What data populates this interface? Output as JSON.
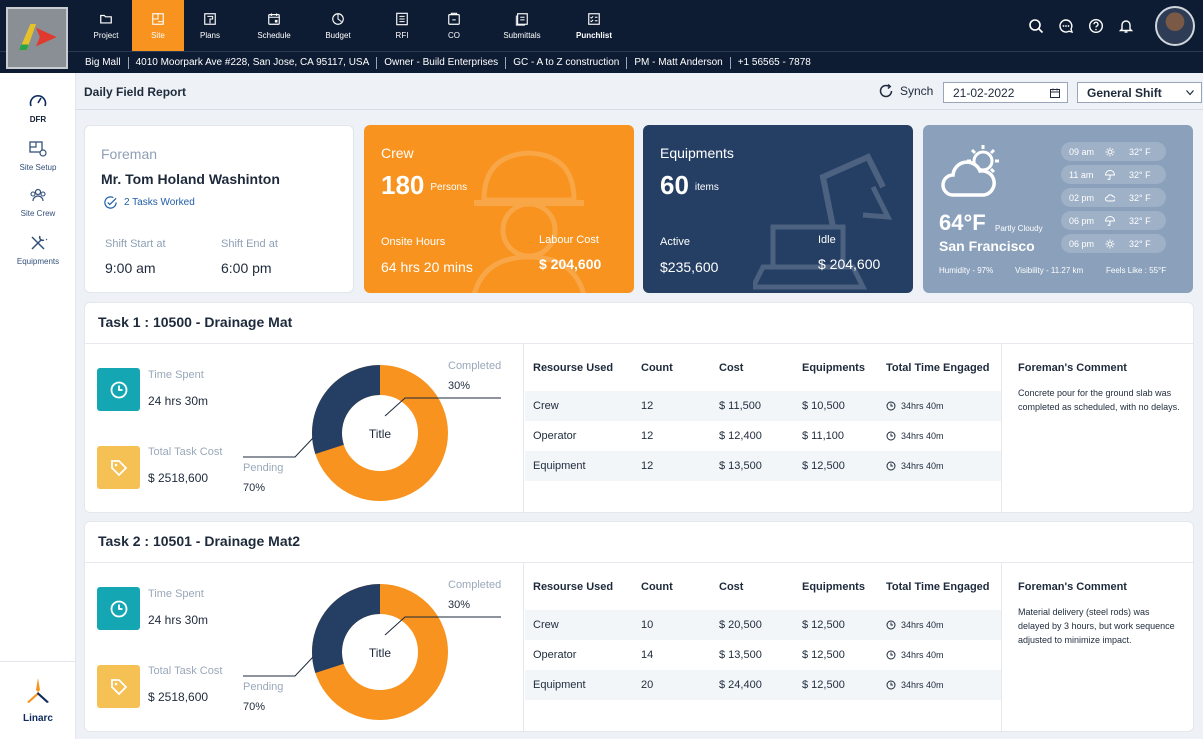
{
  "nav": {
    "items": [
      {
        "label": "Project",
        "icon": "folder-icon"
      },
      {
        "label": "Site",
        "icon": "site-icon"
      },
      {
        "label": "Plans",
        "icon": "plans-icon"
      },
      {
        "label": "Schedule",
        "icon": "calendar-icon"
      },
      {
        "label": "Budget",
        "icon": "budget-icon"
      },
      {
        "label": "RFI",
        "icon": "rfi-icon"
      },
      {
        "label": "CO",
        "icon": "co-icon"
      },
      {
        "label": "Submittals",
        "icon": "submittals-icon"
      },
      {
        "label": "Punchlist",
        "icon": "punchlist-icon"
      }
    ],
    "active": "Site"
  },
  "info_bar": {
    "project": "Big Mall",
    "address": "4010 Moorpark Ave #228, San Jose, CA 95117, USA",
    "owner": "Owner - Build Enterprises",
    "gc": "GC - A to Z construction",
    "pm": "PM - Matt Anderson",
    "phone": "+1 56565 - 7878"
  },
  "sidebar": {
    "items": [
      {
        "label": "DFR",
        "icon": "gauge-icon"
      },
      {
        "label": "Site  Setup",
        "icon": "site-setup-icon"
      },
      {
        "label": "Site Crew",
        "icon": "crew-icon"
      },
      {
        "label": "Equipments",
        "icon": "tools-icon"
      }
    ],
    "brand": "Linarc"
  },
  "header": {
    "title": "Daily Field Report",
    "synch_label": "Synch",
    "date": "21-02-2022",
    "shift": "General Shift"
  },
  "foreman": {
    "label": "Foreman",
    "name": "Mr. Tom Holand Washinton",
    "tasks": "2 Tasks Worked",
    "shift_start_label": "Shift Start at",
    "shift_start": "9:00 am",
    "shift_end_label": "Shift End at",
    "shift_end": "6:00 pm"
  },
  "crew": {
    "title": "Crew",
    "count": "180",
    "unit": "Persons",
    "hours_label": "Onsite Hours",
    "hours": "64 hrs 20 mins",
    "cost_label": "Labour Cost",
    "cost": "$ 204,600"
  },
  "equipment": {
    "title": "Equipments",
    "count": "60",
    "unit": "items",
    "active_label": "Active",
    "active": "$235,600",
    "idle_label": "Idle",
    "idle": "$ 204,600"
  },
  "weather": {
    "temp": "64°F",
    "condition": "Partly Cloudy",
    "city": "San Francisco",
    "humidity": "Humidity - 97%",
    "visibility": "Visibility - 11.27 km",
    "feels": "Feels Like : 55°F",
    "hourly": [
      {
        "time": "09 am",
        "icon": "sun-icon",
        "temp": "32° F"
      },
      {
        "time": "11 am",
        "icon": "umbrella-icon",
        "temp": "32° F"
      },
      {
        "time": "02 pm",
        "icon": "cloud-icon",
        "temp": "32° F"
      },
      {
        "time": "06 pm",
        "icon": "umbrella-icon",
        "temp": "32° F"
      },
      {
        "time": "06 pm",
        "icon": "sun-icon",
        "temp": "32° F"
      }
    ]
  },
  "table_headers": {
    "resource": "Resourse  Used",
    "count": "Count",
    "cost": "Cost",
    "equipments": "Equipments",
    "time": "Total Time Engaged",
    "comment": "Foreman's Comment"
  },
  "tasks": [
    {
      "title": "Task 1 : 10500 - Drainage Mat",
      "time_label": "Time Spent",
      "time": "24 hrs 30m",
      "cost_label": "Total Task Cost",
      "cost": "$ 2518,600",
      "donut_title": "Title",
      "completed_label": "Completed",
      "completed": "30%",
      "pending_label": "Pending",
      "pending": "70%",
      "completed_fraction": 0.3,
      "rows": [
        {
          "resource": "Crew",
          "count": "12",
          "cost": "$ 11,500",
          "equipments": "$ 10,500",
          "time": "34hrs 40m"
        },
        {
          "resource": "Operator",
          "count": "12",
          "cost": "$ 12,400",
          "equipments": "$ 11,100",
          "time": "34hrs 40m"
        },
        {
          "resource": "Equipment",
          "count": "12",
          "cost": "$ 13,500",
          "equipments": "$ 12,500",
          "time": "34hrs 40m"
        }
      ],
      "comment": "Concrete pour for the ground slab was completed as scheduled, with no delays."
    },
    {
      "title": "Task 2 : 10501 - Drainage Mat2",
      "time_label": "Time Spent",
      "time": "24 hrs 30m",
      "cost_label": "Total Task Cost",
      "cost": "$ 2518,600",
      "donut_title": "Title",
      "completed_label": "Completed",
      "completed": "30%",
      "pending_label": "Pending",
      "pending": "70%",
      "completed_fraction": 0.3,
      "rows": [
        {
          "resource": "Crew",
          "count": "10",
          "cost": "$ 20,500",
          "equipments": "$ 12,500",
          "time": "34hrs 40m"
        },
        {
          "resource": "Operator",
          "count": "14",
          "cost": "$ 13,500",
          "equipments": "$ 12,500",
          "time": "34hrs 40m"
        },
        {
          "resource": "Equipment",
          "count": "20",
          "cost": "$ 24,400",
          "equipments": "$ 12,500",
          "time": "34hrs 40m"
        }
      ],
      "comment": "Material delivery (steel rods) was delayed by 3 hours, but work sequence adjusted to minimize impact."
    }
  ],
  "colors": {
    "nav_bg": "#0e1c33",
    "accent": "#f7931e",
    "crew_card": "#f7931e",
    "equipment_card": "#253f64",
    "weather_card": "#8aa0bb",
    "donut_completed": "#253f64",
    "donut_pending": "#f7931e",
    "teal": "#14a7b3",
    "yellow": "#f5c054"
  }
}
